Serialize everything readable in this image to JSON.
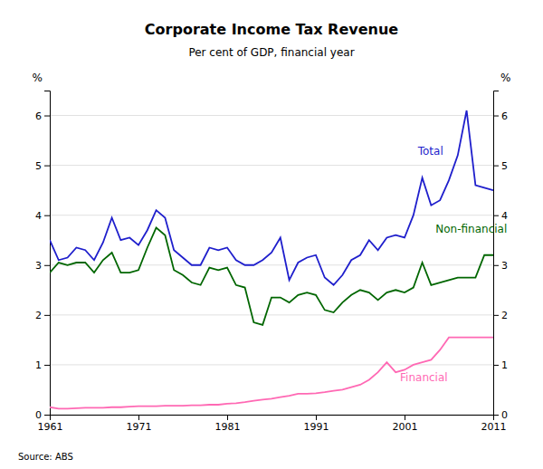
{
  "chart_data": {
    "type": "line",
    "title": "Corporate Income Tax Revenue",
    "subtitle": "Per cent of GDP, financial year",
    "source": "Source: ABS",
    "ylabel": "%",
    "y2label": "%",
    "x": [
      1961,
      1962,
      1963,
      1964,
      1965,
      1966,
      1967,
      1968,
      1969,
      1970,
      1971,
      1972,
      1973,
      1974,
      1975,
      1976,
      1977,
      1978,
      1979,
      1980,
      1981,
      1982,
      1983,
      1984,
      1985,
      1986,
      1987,
      1988,
      1989,
      1990,
      1991,
      1992,
      1993,
      1994,
      1995,
      1996,
      1997,
      1998,
      1999,
      2000,
      2001,
      2002,
      2003,
      2004,
      2005,
      2006,
      2007,
      2008,
      2009,
      2010,
      2011
    ],
    "series": [
      {
        "name": "Total",
        "color": "#1F1FCC",
        "values": [
          3.5,
          3.1,
          3.15,
          3.35,
          3.3,
          3.1,
          3.45,
          3.95,
          3.5,
          3.55,
          3.4,
          3.7,
          4.1,
          3.95,
          3.3,
          3.15,
          3.0,
          3.0,
          3.35,
          3.3,
          3.35,
          3.1,
          3.0,
          3.0,
          3.1,
          3.25,
          3.55,
          2.7,
          3.05,
          3.15,
          3.2,
          2.75,
          2.6,
          2.8,
          3.1,
          3.2,
          3.5,
          3.3,
          3.55,
          3.6,
          3.55,
          4.0,
          4.75,
          4.2,
          4.3,
          4.7,
          5.2,
          6.1,
          4.6,
          4.55,
          4.5
        ]
      },
      {
        "name": "Non-financial",
        "color": "#006600",
        "values": [
          2.85,
          3.05,
          3.0,
          3.05,
          3.05,
          2.85,
          3.1,
          3.25,
          2.85,
          2.85,
          2.9,
          3.35,
          3.75,
          3.6,
          2.9,
          2.8,
          2.65,
          2.6,
          2.95,
          2.9,
          2.95,
          2.6,
          2.55,
          1.85,
          1.8,
          2.35,
          2.35,
          2.25,
          2.4,
          2.45,
          2.4,
          2.1,
          2.05,
          2.25,
          2.4,
          2.5,
          2.45,
          2.3,
          2.45,
          2.5,
          2.45,
          2.55,
          3.05,
          2.6,
          2.65,
          2.7,
          2.75,
          2.75,
          2.75,
          3.2,
          3.2
        ]
      },
      {
        "name": "Financial",
        "color": "#FF69B4",
        "values": [
          0.15,
          0.12,
          0.12,
          0.13,
          0.14,
          0.14,
          0.14,
          0.15,
          0.15,
          0.16,
          0.17,
          0.17,
          0.17,
          0.18,
          0.18,
          0.18,
          0.19,
          0.19,
          0.2,
          0.2,
          0.22,
          0.23,
          0.25,
          0.28,
          0.3,
          0.32,
          0.35,
          0.38,
          0.42,
          0.42,
          0.43,
          0.45,
          0.48,
          0.5,
          0.55,
          0.6,
          0.7,
          0.85,
          1.05,
          0.85,
          0.9,
          1.0,
          1.05,
          1.1,
          1.3,
          1.55,
          1.55,
          1.55,
          1.55,
          1.55,
          1.55
        ]
      }
    ],
    "annotations": [
      {
        "text": "Total",
        "x": 2002.5,
        "y": 5.15,
        "color": "#1F1FCC"
      },
      {
        "text": "Non-financial",
        "x": 2004.5,
        "y": 3.6,
        "color": "#006600"
      },
      {
        "text": "Financial",
        "x": 2000.5,
        "y": 0.62,
        "color": "#FF69B4"
      }
    ],
    "xlim": [
      1961,
      2011
    ],
    "xticks": [
      1961,
      1971,
      1981,
      1991,
      2001,
      2011
    ],
    "ylim": [
      0,
      6.5
    ],
    "yticks": [
      0,
      1,
      2,
      3,
      4,
      5,
      6
    ],
    "y2lim": [
      0,
      6.5
    ],
    "y2ticks": [
      0,
      1,
      2,
      3,
      4,
      5,
      6
    ],
    "grid": true
  }
}
